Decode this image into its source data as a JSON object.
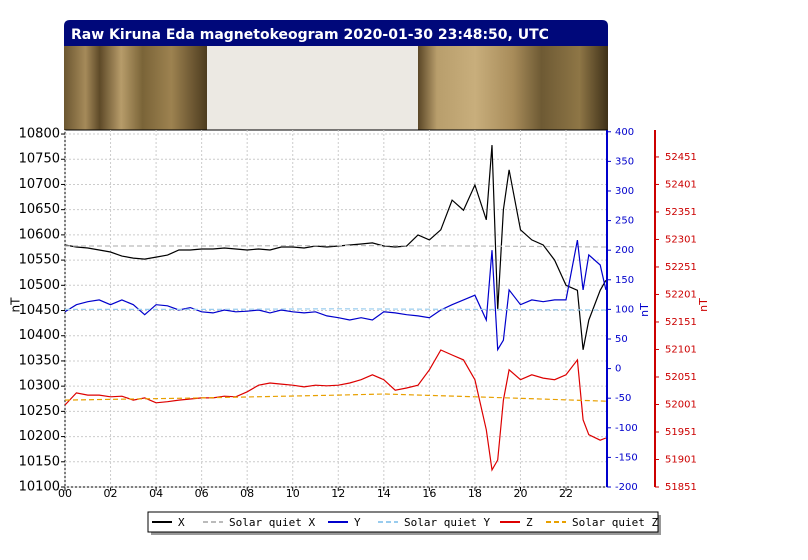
{
  "chart_data": {
    "type": "line",
    "title": "Raw Kiruna Eda magnetokeogram 2020-01-30 23:48:50, UTC",
    "xlim": [
      0,
      23.8
    ],
    "xticks": [
      {
        "value": 0,
        "label": "00"
      },
      {
        "value": 2,
        "label": "02"
      },
      {
        "value": 4,
        "label": "04"
      },
      {
        "value": 6,
        "label": "06"
      },
      {
        "value": 8,
        "label": "08"
      },
      {
        "value": 10,
        "label": "10"
      },
      {
        "value": 12,
        "label": "12"
      },
      {
        "value": 14,
        "label": "14"
      },
      {
        "value": 16,
        "label": "16"
      },
      {
        "value": 18,
        "label": "18"
      },
      {
        "value": 20,
        "label": "20"
      },
      {
        "value": 22,
        "label": "22"
      }
    ],
    "ylabel": "nT",
    "ylim": [
      10100,
      10808
    ],
    "yticks": [
      10100,
      10150,
      10200,
      10250,
      10300,
      10350,
      10400,
      10450,
      10500,
      10550,
      10600,
      10650,
      10700,
      10750,
      10800
    ],
    "y2label": "nT",
    "y2lim": [
      -200,
      403
    ],
    "y2ticks": [
      -200,
      -150,
      -100,
      -50,
      0,
      50,
      100,
      150,
      200,
      250,
      300,
      350,
      400
    ],
    "y3label": "nT",
    "y3lim": [
      51851,
      52500
    ],
    "y3ticks": [
      51851,
      51901,
      51951,
      52001,
      52051,
      52101,
      52151,
      52201,
      52251,
      52301,
      52351,
      52401,
      52451
    ],
    "grid": true,
    "x": [
      0,
      0.5,
      1,
      1.5,
      2,
      2.5,
      3,
      3.5,
      4,
      4.5,
      5,
      5.5,
      6,
      6.5,
      7,
      7.5,
      8,
      8.5,
      9,
      9.5,
      10,
      10.5,
      11,
      11.5,
      12,
      12.5,
      13,
      13.5,
      14,
      14.5,
      15,
      15.5,
      16,
      16.5,
      17,
      17.5,
      18,
      18.5,
      18.75,
      19,
      19.25,
      19.5,
      20,
      20.5,
      21,
      21.5,
      22,
      22.5,
      22.75,
      23,
      23.5,
      23.75
    ],
    "series": [
      {
        "name": "X",
        "color": "#000000",
        "axis": "y",
        "values": [
          10580,
          10576,
          10574,
          10570,
          10566,
          10558,
          10554,
          10552,
          10556,
          10560,
          10570,
          10570,
          10572,
          10572,
          10574,
          10572,
          10570,
          10572,
          10570,
          10576,
          10576,
          10574,
          10578,
          10576,
          10578,
          10580,
          10582,
          10584,
          10578,
          10576,
          10578,
          10600,
          10590,
          10610,
          10669,
          10649,
          10699,
          10630,
          10778,
          10451,
          10650,
          10729,
          10610,
          10590,
          10580,
          10550,
          10500,
          10490,
          10372,
          10431,
          10490,
          10510
        ]
      },
      {
        "name": "Solar quiet X",
        "color": "#bbbbbb",
        "axis": "y",
        "dashed": true,
        "x": [
          0,
          6,
          12,
          18,
          23.75
        ],
        "values": [
          10578,
          10578,
          10579,
          10578,
          10576
        ]
      },
      {
        "name": "Y",
        "color": "#0000cc",
        "axis": "y2",
        "values": [
          96,
          108,
          113,
          116,
          108,
          116,
          108,
          91,
          108,
          106,
          99,
          103,
          96,
          94,
          99,
          96,
          97,
          99,
          94,
          99,
          96,
          94,
          96,
          89,
          86,
          82,
          86,
          82,
          96,
          94,
          91,
          89,
          86,
          99,
          108,
          116,
          124,
          82,
          200,
          32,
          48,
          133,
          108,
          116,
          113,
          116,
          116,
          217,
          133,
          192,
          175,
          133
        ]
      },
      {
        "name": "Solar quiet Y",
        "color": "#99ccee",
        "axis": "y2",
        "dashed": true,
        "x": [
          0,
          6,
          12,
          18,
          23.75
        ],
        "values": [
          100,
          100,
          101,
          100,
          99
        ]
      },
      {
        "name": "Z",
        "color": "#dd0000",
        "axis": "y3",
        "values": [
          52000,
          52022,
          52018,
          52018,
          52015,
          52016,
          52009,
          52013,
          52004,
          52006,
          52009,
          52011,
          52013,
          52013,
          52016,
          52015,
          52024,
          52036,
          52040,
          52038,
          52036,
          52033,
          52036,
          52035,
          52036,
          52040,
          52046,
          52055,
          52046,
          52027,
          52031,
          52036,
          52064,
          52100,
          52091,
          52082,
          52046,
          51955,
          51882,
          51900,
          52009,
          52064,
          52046,
          52055,
          52049,
          52046,
          52055,
          52082,
          51973,
          51946,
          51936,
          51940
        ]
      },
      {
        "name": "Solar quiet Z",
        "color": "#e8a000",
        "axis": "y3",
        "dashed": true,
        "x": [
          0,
          6,
          12,
          14,
          18,
          23.75
        ],
        "values": [
          52009,
          52013,
          52018,
          52020,
          52015,
          52007
        ]
      }
    ]
  }
}
